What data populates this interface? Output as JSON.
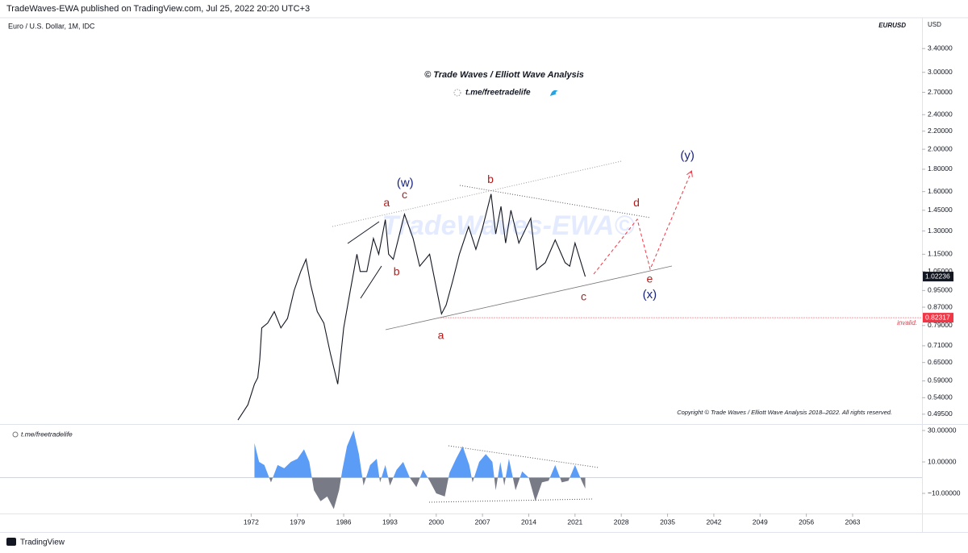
{
  "header": "TradeWaves-EWA published on TradingView.com, Jul 25, 2022 20:20 UTC+3",
  "footer": "TradingView",
  "chart_data": [
    {
      "type": "line",
      "log_scale": true,
      "symbol": "Euro / U.S. Dollar, 1M, IDC",
      "ticker": "EURUSD",
      "currency": "USD",
      "title": "© Trade Waves / Elliott Wave Analysis",
      "subtitle": "t.me/freetradelife",
      "watermark": "TradeWaves-EWA©",
      "copyright": "Copyright © Trade Waves / Elliott Wave Analysis 2018–2022. All rights reserved.",
      "xlim": [
        1934,
        2073.5
      ],
      "ylim": [
        0.47,
        4.0
      ],
      "xticks": [
        1972,
        1979,
        1986,
        1993,
        2000,
        2007,
        2014,
        2021,
        2028,
        2035,
        2042,
        2049,
        2056,
        2063
      ],
      "yticks": [
        {
          "value": 3.4,
          "label": "3.40000"
        },
        {
          "value": 3.0,
          "label": "3.00000"
        },
        {
          "value": 2.7,
          "label": "2.70000"
        },
        {
          "value": 2.4,
          "label": "2.40000"
        },
        {
          "value": 2.2,
          "label": "2.20000"
        },
        {
          "value": 2.0,
          "label": "2.00000"
        },
        {
          "value": 1.8,
          "label": "1.80000"
        },
        {
          "value": 1.6,
          "label": "1.60000"
        },
        {
          "value": 1.45,
          "label": "1.45000"
        },
        {
          "value": 1.3,
          "label": "1.30000"
        },
        {
          "value": 1.15,
          "label": "1.15000"
        },
        {
          "value": 1.05,
          "label": "1.05000"
        },
        {
          "value": 0.95,
          "label": "0.95000"
        },
        {
          "value": 0.87,
          "label": "0.87000"
        },
        {
          "value": 0.79,
          "label": "0.79000"
        },
        {
          "value": 0.71,
          "label": "0.71000"
        },
        {
          "value": 0.65,
          "label": "0.65000"
        },
        {
          "value": 0.59,
          "label": "0.59000"
        },
        {
          "value": 0.54,
          "label": "0.54000"
        },
        {
          "value": 0.495,
          "label": "0.49500"
        }
      ],
      "series": [
        {
          "color": "#131722",
          "x": [
            1970.0,
            1971.5,
            1972.5,
            1973.0,
            1973.3,
            1973.6,
            1974.5,
            1975.5,
            1976.5,
            1977.5,
            1978.5,
            1979.5,
            1980.3,
            1981.0,
            1982.0,
            1983.0,
            1984.0,
            1985.1,
            1986.0,
            1987.0,
            1988.0,
            1988.5,
            1989.5,
            1990.5,
            1991.3,
            1992.3,
            1992.8,
            1993.5,
            1995.2,
            1996.5,
            1997.5,
            1999.0,
            2000.8,
            2001.5,
            2002.5,
            2003.5,
            2004.9,
            2006.0,
            2007.0,
            2008.3,
            2009.0,
            2009.8,
            2010.5,
            2011.3,
            2012.5,
            2014.3,
            2015.2,
            2016.5,
            2018.0,
            2019.5,
            2020.2,
            2021.0,
            2022.55
          ],
          "values": [
            0.48,
            0.52,
            0.58,
            0.6,
            0.66,
            0.78,
            0.8,
            0.85,
            0.78,
            0.82,
            0.95,
            1.05,
            1.12,
            0.98,
            0.85,
            0.8,
            0.68,
            0.58,
            0.78,
            0.95,
            1.15,
            1.05,
            1.05,
            1.25,
            1.15,
            1.38,
            1.15,
            1.12,
            1.42,
            1.25,
            1.08,
            1.15,
            0.84,
            0.88,
            1.0,
            1.15,
            1.33,
            1.18,
            1.32,
            1.58,
            1.28,
            1.48,
            1.22,
            1.45,
            1.22,
            1.39,
            1.06,
            1.1,
            1.24,
            1.1,
            1.08,
            1.22,
            1.02236
          ]
        }
      ],
      "price_labels": [
        {
          "value": 1.02236,
          "label": "1.02236",
          "color": "#131722"
        },
        {
          "value": 0.82317,
          "label": "0.82317",
          "color": "#f23645"
        }
      ],
      "invalid_note": "invalid.",
      "annotations": [
        {
          "text": "a",
          "x": 1992.5,
          "y": 1.505,
          "color": "#b71c1c"
        },
        {
          "text": "c",
          "x": 1995.2,
          "y": 1.57,
          "color": "#b71c1c"
        },
        {
          "text": "(w)",
          "x": 1995.3,
          "y": 1.67,
          "color": "#1a237e"
        },
        {
          "text": "b",
          "x": 1994.0,
          "y": 1.045,
          "color": "#b71c1c"
        },
        {
          "text": "b",
          "x": 2008.2,
          "y": 1.7,
          "color": "#b71c1c"
        },
        {
          "text": "a",
          "x": 2000.7,
          "y": 0.748,
          "color": "#b71c1c"
        },
        {
          "text": "c",
          "x": 2022.3,
          "y": 0.916,
          "color": "#b71c1c"
        },
        {
          "text": "d",
          "x": 2030.3,
          "y": 1.505,
          "color": "#b71c1c"
        },
        {
          "text": "e",
          "x": 2032.3,
          "y": 1.006,
          "color": "#b71c1c"
        },
        {
          "text": "(x)",
          "x": 2032.3,
          "y": 0.928,
          "color": "#1a237e"
        },
        {
          "text": "(y)",
          "x": 2038.0,
          "y": 1.93,
          "color": "#1a237e"
        }
      ]
    },
    {
      "type": "area",
      "label": "t.me/freetradelife",
      "xlim": [
        1934,
        2073.5
      ],
      "ylim": [
        -22.8,
        33.6
      ],
      "yticks": [
        {
          "value": 30,
          "label": "30.00000"
        },
        {
          "value": 10,
          "label": "10.00000"
        },
        {
          "value": -10,
          "label": "−10.00000"
        }
      ],
      "positive_color": "#5b9cf6",
      "negative_color": "#787b86",
      "x": [
        1972.5,
        1973.2,
        1974,
        1975,
        1976,
        1977,
        1978,
        1979,
        1980,
        1980.8,
        1981.5,
        1982.5,
        1983.5,
        1984.5,
        1985.3,
        1985.8,
        1986.5,
        1987.5,
        1988.3,
        1989,
        1990,
        1991,
        1991.5,
        1992.3,
        1993,
        1994,
        1995,
        1996,
        1997,
        1998,
        1999,
        2000,
        2001.3,
        2002,
        2003,
        2004,
        2005,
        2005.5,
        2006.5,
        2007.5,
        2008.5,
        2009,
        2009.7,
        2010.3,
        2011,
        2012,
        2013,
        2014,
        2015,
        2016,
        2017,
        2018,
        2019,
        2020,
        2021,
        2022,
        2022.55
      ],
      "values": [
        22,
        10,
        8,
        -3,
        8,
        6,
        10,
        12,
        18,
        10,
        -8,
        -15,
        -12,
        -20,
        -8,
        5,
        20,
        30,
        15,
        -5,
        8,
        12,
        -3,
        8,
        -5,
        5,
        10,
        0,
        -6,
        5,
        -2,
        -10,
        -12,
        3,
        12,
        20,
        8,
        -3,
        10,
        15,
        10,
        -8,
        10,
        -5,
        12,
        -8,
        4,
        0,
        -15,
        -3,
        -2,
        8,
        -3,
        -2,
        8,
        -2,
        -7
      ]
    }
  ]
}
